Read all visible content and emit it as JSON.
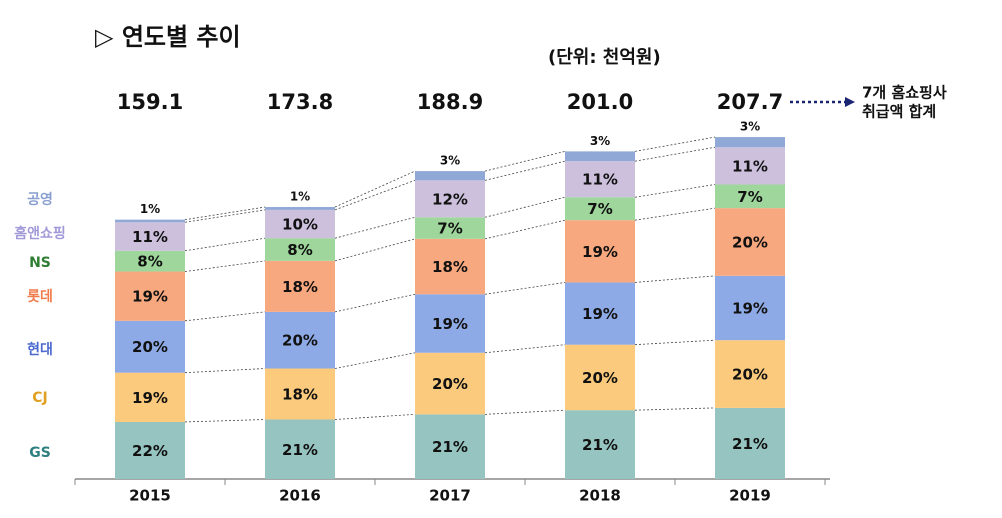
{
  "chart_data": {
    "type": "stacked-bar",
    "title": "▷ 연도별 추이",
    "subtitle": "(단위: 천억원)",
    "annotation": [
      "7개 홈쇼핑사",
      "취급액 합계"
    ],
    "categories": [
      "2015",
      "2016",
      "2017",
      "2018",
      "2019"
    ],
    "totals": {
      "values": [
        159.1,
        173.8,
        188.9,
        201.0,
        207.7
      ],
      "value_labels": [
        "159.1",
        "173.8",
        "188.9",
        "201.0",
        "207.7"
      ]
    },
    "series": [
      {
        "name": "GS",
        "color": "#96c4c0",
        "label_color": "#2e7f7f",
        "values": [
          22,
          21,
          21,
          21,
          21
        ],
        "value_labels": [
          "22%",
          "21%",
          "21%",
          "21%",
          "21%"
        ]
      },
      {
        "name": "CJ",
        "color": "#fcca7c",
        "label_color": "#e0a020",
        "values": [
          19,
          18,
          20,
          20,
          20
        ],
        "value_labels": [
          "19%",
          "18%",
          "20%",
          "20%",
          "20%"
        ]
      },
      {
        "name": "현대",
        "color": "#8eaae6",
        "label_color": "#4a68d0",
        "values": [
          20,
          20,
          19,
          19,
          19
        ],
        "value_labels": [
          "20%",
          "20%",
          "19%",
          "19%",
          "19%"
        ]
      },
      {
        "name": "롯데",
        "color": "#f8a87e",
        "label_color": "#f07c4c",
        "values": [
          19,
          18,
          18,
          19,
          20
        ],
        "value_labels": [
          "19%",
          "18%",
          "18%",
          "19%",
          "20%"
        ]
      },
      {
        "name": "NS",
        "color": "#9ed69c",
        "label_color": "#2e7d32",
        "values": [
          8,
          8,
          7,
          7,
          7
        ],
        "value_labels": [
          "8%",
          "8%",
          "7%",
          "7%",
          "7%"
        ]
      },
      {
        "name": "홈앤쇼핑",
        "color": "#ccc0dd",
        "label_color": "#a29ad8",
        "values": [
          11,
          10,
          12,
          11,
          11
        ],
        "value_labels": [
          "11%",
          "10%",
          "12%",
          "11%",
          "11%"
        ]
      },
      {
        "name": "공영",
        "color": "#8fa8d6",
        "label_color": "#8aa0d0",
        "values": [
          1,
          1,
          3,
          3,
          3
        ],
        "value_labels": [
          "1%",
          "1%",
          "3%",
          "3%",
          "3%"
        ]
      }
    ]
  }
}
